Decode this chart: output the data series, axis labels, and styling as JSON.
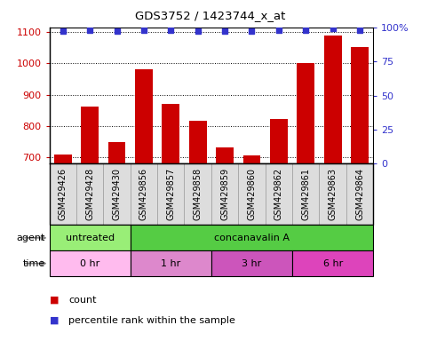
{
  "title": "GDS3752 / 1423744_x_at",
  "samples": [
    "GSM429426",
    "GSM429428",
    "GSM429430",
    "GSM429856",
    "GSM429857",
    "GSM429858",
    "GSM429859",
    "GSM429860",
    "GSM429862",
    "GSM429861",
    "GSM429863",
    "GSM429864"
  ],
  "counts": [
    710,
    862,
    748,
    982,
    872,
    818,
    733,
    706,
    822,
    1000,
    1090,
    1052
  ],
  "percentile_ranks": [
    97,
    98,
    97,
    98,
    98,
    97,
    97,
    97,
    98,
    98,
    99,
    98
  ],
  "ylim_left": [
    680,
    1115
  ],
  "ylim_right": [
    0,
    100
  ],
  "yticks_left": [
    700,
    800,
    900,
    1000,
    1100
  ],
  "yticks_right": [
    0,
    25,
    50,
    75,
    100
  ],
  "bar_color": "#cc0000",
  "dot_color": "#3333cc",
  "agent_groups": [
    {
      "label": "untreated",
      "start": 0,
      "end": 3,
      "color": "#99ee77"
    },
    {
      "label": "concanavalin A",
      "start": 3,
      "end": 12,
      "color": "#55cc44"
    }
  ],
  "time_groups": [
    {
      "label": "0 hr",
      "start": 0,
      "end": 3,
      "color": "#ffbbee"
    },
    {
      "label": "1 hr",
      "start": 3,
      "end": 6,
      "color": "#dd88cc"
    },
    {
      "label": "3 hr",
      "start": 6,
      "end": 9,
      "color": "#cc55bb"
    },
    {
      "label": "6 hr",
      "start": 9,
      "end": 12,
      "color": "#dd44bb"
    }
  ],
  "tick_label_fontsize": 7,
  "axis_color_left": "#cc0000",
  "axis_color_right": "#3333cc",
  "background_color": "#ffffff",
  "bar_width": 0.65,
  "xlabel_box_color": "#dddddd",
  "xlabel_box_edge": "#aaaaaa"
}
